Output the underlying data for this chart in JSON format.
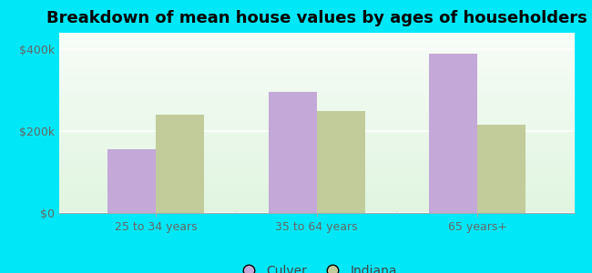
{
  "title": "Breakdown of mean house values by ages of householders",
  "categories": [
    "25 to 34 years",
    "35 to 64 years",
    "65 years+"
  ],
  "culver_values": [
    155000,
    295000,
    390000
  ],
  "indiana_values": [
    240000,
    250000,
    215000
  ],
  "culver_color": "#c4a8d8",
  "indiana_color": "#c2cc9a",
  "background_outer": "#00e8f8",
  "ylim": [
    0,
    440000
  ],
  "yticks": [
    0,
    200000,
    400000
  ],
  "ytick_labels": [
    "$0",
    "$200k",
    "$400k"
  ],
  "legend_labels": [
    "Culver",
    "Indiana"
  ],
  "bar_width": 0.3,
  "title_fontsize": 13,
  "tick_fontsize": 9,
  "legend_fontsize": 10
}
